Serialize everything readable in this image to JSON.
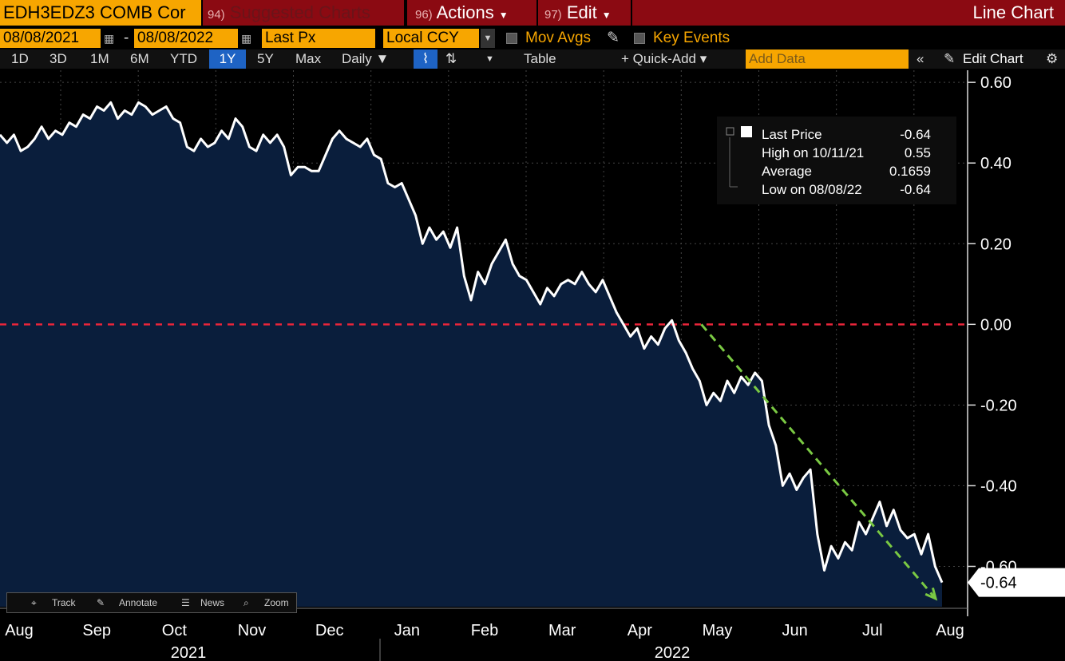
{
  "header": {
    "ticker": "EDH3EDZ3 COMB Cor",
    "suggested_num": "94)",
    "suggested_label": "Suggested Charts",
    "actions_num": "96)",
    "actions_label": "Actions",
    "edit_num": "97)",
    "edit_label": "Edit",
    "chart_type": "Line Chart"
  },
  "controls": {
    "start_date": "08/08/2021",
    "date_separator": "-",
    "end_date": "08/08/2022",
    "field": "Last Px",
    "currency": "Local CCY",
    "mov_avgs": "Mov Avgs",
    "key_events": "Key Events"
  },
  "periods": [
    "1D",
    "3D",
    "1M",
    "6M",
    "YTD",
    "1Y",
    "5Y",
    "Max"
  ],
  "active_period": "1Y",
  "frequency": "Daily ▼",
  "table_label": "Table",
  "quick_add": "+ Quick-Add ▾",
  "add_data_placeholder": "Add Data",
  "edit_chart": "Edit Chart",
  "tools": {
    "track": "Track",
    "annotate": "Annotate",
    "news": "News",
    "zoom": "Zoom"
  },
  "colors": {
    "accent": "#f7a600",
    "header_red": "#8b0a12",
    "plot_fill": "#0a1e3c",
    "zero_line": "#e8253a",
    "trend": "#7ac943"
  },
  "chart_data": {
    "type": "area",
    "series": [
      {
        "values": [
          0.47,
          0.45,
          0.47,
          0.43,
          0.44,
          0.46,
          0.49,
          0.46,
          0.48,
          0.47,
          0.5,
          0.49,
          0.52,
          0.51,
          0.54,
          0.53,
          0.55,
          0.51,
          0.53,
          0.52,
          0.55,
          0.54,
          0.52,
          0.53,
          0.54,
          0.51,
          0.5,
          0.44,
          0.43,
          0.46,
          0.44,
          0.45,
          0.48,
          0.46,
          0.51,
          0.49,
          0.44,
          0.43,
          0.47,
          0.45,
          0.47,
          0.44,
          0.37,
          0.39,
          0.39,
          0.38,
          0.38,
          0.42,
          0.46,
          0.48,
          0.46,
          0.45,
          0.44,
          0.46,
          0.42,
          0.41,
          0.35,
          0.34,
          0.35,
          0.31,
          0.27,
          0.2,
          0.24,
          0.21,
          0.23,
          0.19,
          0.24,
          0.12,
          0.06,
          0.13,
          0.1,
          0.15,
          0.18,
          0.21,
          0.15,
          0.12,
          0.11,
          0.08,
          0.05,
          0.09,
          0.07,
          0.1,
          0.11,
          0.1,
          0.13,
          0.1,
          0.08,
          0.11,
          0.07,
          0.03,
          0.0,
          -0.03,
          -0.01,
          -0.06,
          -0.03,
          -0.05,
          -0.01,
          0.01,
          -0.04,
          -0.07,
          -0.11,
          -0.14,
          -0.2,
          -0.17,
          -0.19,
          -0.14,
          -0.17,
          -0.13,
          -0.15,
          -0.12,
          -0.14,
          -0.25,
          -0.3,
          -0.4,
          -0.37,
          -0.41,
          -0.38,
          -0.36,
          -0.52,
          -0.61,
          -0.55,
          -0.58,
          -0.54,
          -0.56,
          -0.49,
          -0.52,
          -0.48,
          -0.44,
          -0.5,
          -0.46,
          -0.51,
          -0.53,
          -0.52,
          -0.57,
          -0.52,
          -0.6,
          -0.64
        ]
      }
    ],
    "x_labels": [
      "Aug",
      "Sep",
      "Oct",
      "Nov",
      "Dec",
      "Jan",
      "Feb",
      "Mar",
      "Apr",
      "May",
      "Jun",
      "Jul",
      "Aug"
    ],
    "year_labels": [
      "2021",
      "2022"
    ],
    "yticks": [
      0.6,
      0.4,
      0.2,
      0.0,
      -0.2,
      -0.4,
      -0.6
    ],
    "ytick_labels": [
      "0.60",
      "0.40",
      "0.20",
      "0.00",
      "-0.20",
      "-0.40",
      "-0.60"
    ],
    "ylim": [
      -0.7,
      0.63
    ],
    "reference_line": 0.0,
    "trend_line": {
      "start": [
        "May",
        0.0
      ],
      "end": [
        "Aug",
        -0.68
      ]
    },
    "last_value_label": "-0.64",
    "legend": [
      {
        "label": "Last Price",
        "value": "-0.64"
      },
      {
        "label": "High on 10/11/21",
        "value": "0.55"
      },
      {
        "label": "Average",
        "value": "0.1659"
      },
      {
        "label": "Low on 08/08/22",
        "value": "-0.64"
      }
    ],
    "legend_position": "top-right",
    "grid": true
  }
}
